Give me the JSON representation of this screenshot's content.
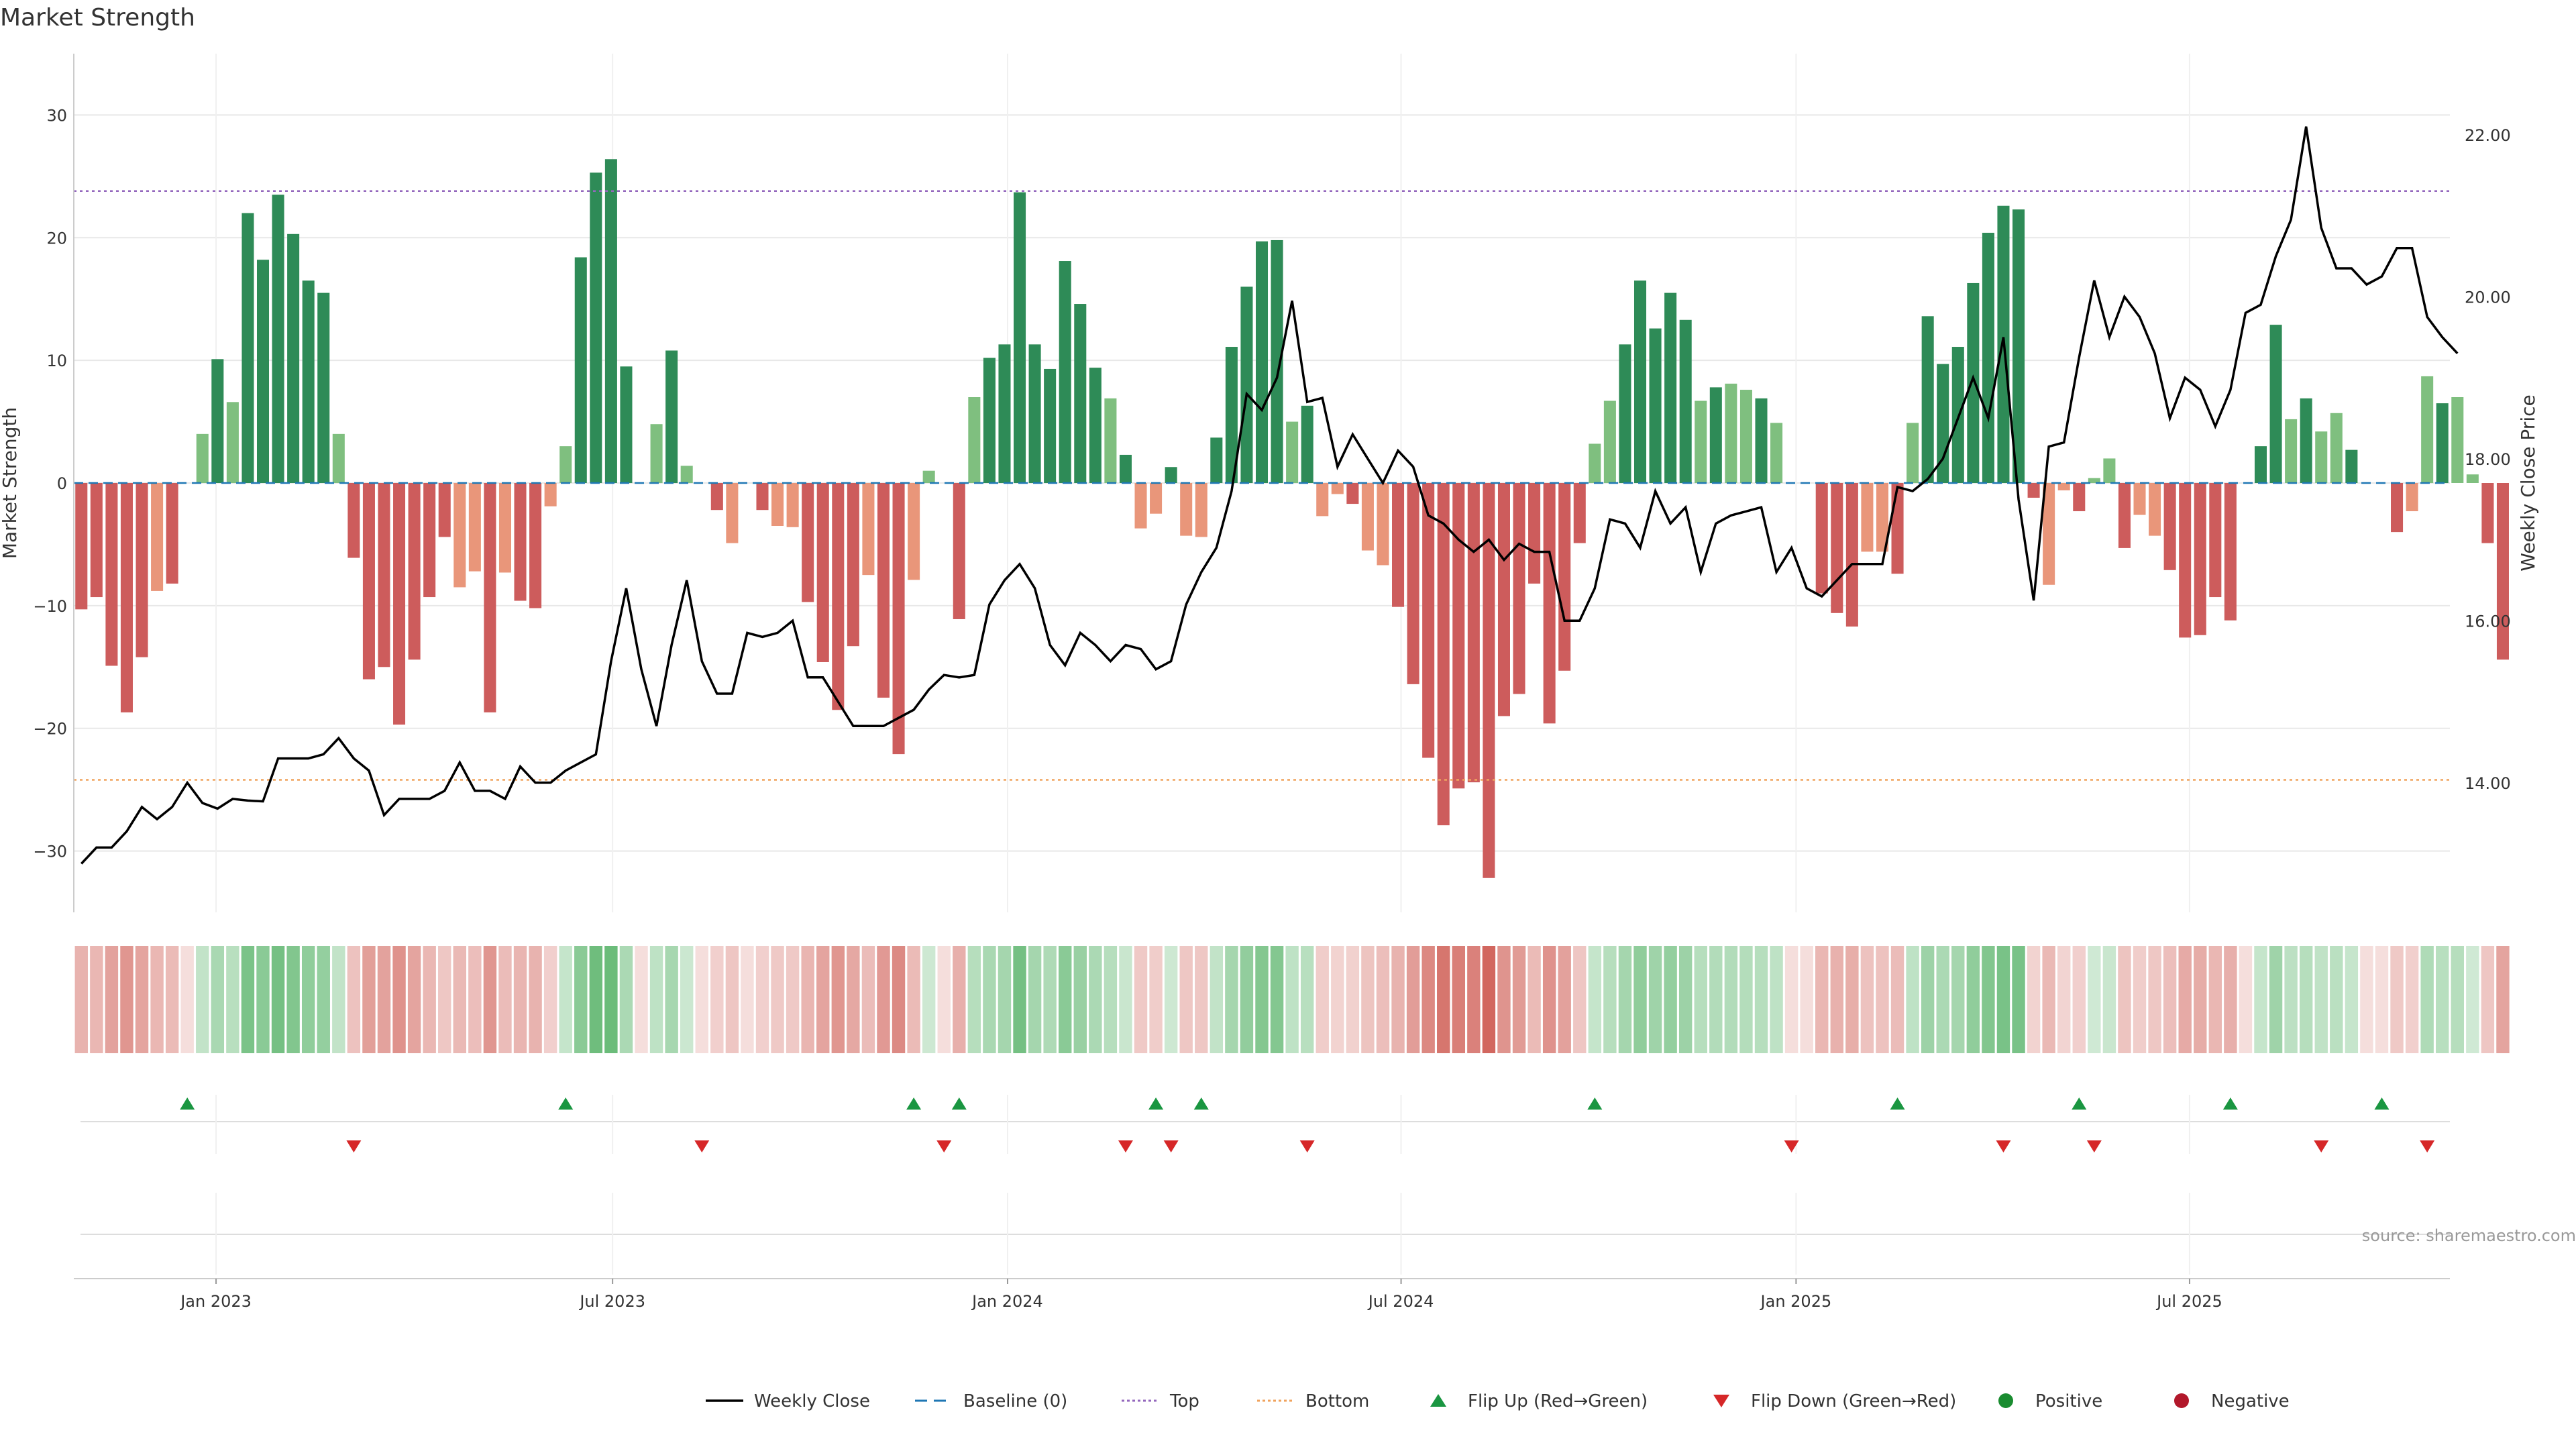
{
  "chart_data": {
    "type": "bar",
    "title": "Market Strength",
    "ylabel": "Market Strength",
    "y2label": "Weekly Close Price",
    "ylim": [
      -35,
      35
    ],
    "y2lim": [
      12.4,
      23.0
    ],
    "yticks": [
      -30,
      -20,
      -10,
      0,
      10,
      20,
      30
    ],
    "ytick_labels": [
      "−30",
      "−20",
      "−10",
      "0",
      "10",
      "20",
      "30"
    ],
    "y2ticks": [
      14,
      16,
      18,
      20,
      22
    ],
    "y2tick_labels": [
      "14.00",
      "16.00",
      "18.00",
      "20.00",
      "22.00"
    ],
    "top_line": 23.8,
    "bottom_line": -24.2,
    "x_tick_labels": [
      {
        "label": "Jan 2023",
        "week": 9.4
      },
      {
        "label": "Jul 2023",
        "week": 35.6
      },
      {
        "label": "Jan 2024",
        "week": 61.7
      },
      {
        "label": "Jul 2024",
        "week": 87.7
      },
      {
        "label": "Jan 2025",
        "week": 113.8
      },
      {
        "label": "Jul 2025",
        "week": 139.8
      }
    ],
    "weeks": 157,
    "strength": [
      -10.3,
      -9.3,
      -14.9,
      -18.7,
      -14.2,
      -8.8,
      -8.2,
      0,
      4.0,
      10.1,
      6.6,
      22.0,
      18.2,
      23.5,
      20.3,
      16.5,
      15.5,
      4.0,
      -6.1,
      -16.0,
      -15.0,
      -19.7,
      -14.4,
      -9.3,
      -4.4,
      -8.5,
      -7.2,
      -18.7,
      -7.3,
      -9.6,
      -10.2,
      -1.9,
      3.0,
      18.4,
      25.3,
      26.4,
      9.5,
      0,
      4.8,
      10.8,
      1.4,
      0,
      -2.2,
      -4.9,
      0,
      -2.2,
      -3.5,
      -3.6,
      -9.7,
      -14.6,
      -18.5,
      -13.3,
      -7.5,
      -17.5,
      -22.1,
      -7.9,
      1.0,
      0,
      -11.1,
      7.0,
      10.2,
      11.3,
      23.7,
      11.3,
      9.3,
      18.1,
      14.6,
      9.4,
      6.9,
      2.3,
      -3.7,
      -2.5,
      1.3,
      -4.3,
      -4.4,
      3.7,
      11.1,
      16.0,
      19.7,
      19.8,
      5.0,
      6.3,
      -2.7,
      -0.9,
      -1.7,
      -5.5,
      -6.7,
      -10.1,
      -16.4,
      -22.4,
      -27.9,
      -24.9,
      -24.4,
      -32.2,
      -19.0,
      -17.2,
      -8.2,
      -19.6,
      -15.3,
      -4.9,
      3.2,
      6.7,
      11.3,
      16.5,
      12.6,
      15.5,
      13.3,
      6.7,
      7.8,
      8.1,
      7.6,
      6.9,
      4.9,
      0,
      0,
      -9.0,
      -10.6,
      -11.7,
      -5.6,
      -5.6,
      -7.4,
      4.9,
      13.6,
      9.7,
      11.1,
      16.3,
      20.4,
      22.6,
      22.3,
      -1.2,
      -8.3,
      -0.6,
      -2.3,
      0.4,
      2.0,
      -5.3,
      -2.6,
      -4.3,
      -7.1,
      -12.6,
      -12.4,
      -9.3,
      -11.2,
      0,
      3.0,
      12.9,
      5.2,
      6.9,
      4.2,
      5.7,
      2.7,
      0,
      0,
      -4.0,
      -2.3,
      8.7,
      6.5,
      7.0,
      0.7,
      -4.9,
      -14.4
    ],
    "close": [
      13.0,
      13.2,
      13.2,
      13.4,
      13.7,
      13.55,
      13.7,
      14.0,
      13.75,
      13.68,
      13.8,
      13.78,
      13.77,
      14.3,
      14.3,
      14.3,
      14.35,
      14.55,
      14.3,
      14.15,
      13.6,
      13.8,
      13.8,
      13.8,
      13.9,
      14.25,
      13.9,
      13.9,
      13.8,
      14.2,
      14.0,
      14.0,
      14.15,
      14.25,
      14.35,
      15.5,
      16.4,
      15.4,
      14.7,
      15.7,
      16.5,
      15.5,
      15.1,
      15.1,
      15.85,
      15.8,
      15.85,
      16.0,
      15.3,
      15.3,
      15.0,
      14.7,
      14.7,
      14.7,
      14.8,
      14.9,
      15.15,
      15.33,
      15.3,
      15.33,
      16.2,
      16.5,
      16.7,
      16.4,
      15.7,
      15.45,
      15.85,
      15.7,
      15.5,
      15.7,
      15.65,
      15.4,
      15.5,
      16.2,
      16.6,
      16.9,
      17.6,
      18.8,
      18.6,
      19.0,
      19.95,
      18.7,
      18.75,
      17.9,
      18.3,
      18.0,
      17.7,
      18.1,
      17.9,
      17.3,
      17.2,
      17.0,
      16.85,
      17.0,
      16.75,
      16.95,
      16.85,
      16.85,
      16.0,
      16.0,
      16.4,
      17.25,
      17.2,
      16.9,
      17.6,
      17.2,
      17.4,
      16.6,
      17.2,
      17.3,
      17.35,
      17.4,
      16.6,
      16.9,
      16.4,
      16.3,
      16.5,
      16.7,
      16.7,
      16.7,
      17.65,
      17.6,
      17.75,
      18.0,
      18.5,
      19.0,
      18.5,
      19.5,
      17.5,
      16.25,
      18.15,
      18.2,
      19.25,
      20.2,
      19.5,
      20.0,
      19.75,
      19.3,
      18.5,
      19.0,
      18.85,
      18.4,
      18.85,
      19.8,
      19.9,
      20.5,
      20.95,
      22.1,
      20.85,
      20.35,
      20.35,
      20.15,
      20.25,
      20.6,
      20.6,
      19.75,
      19.5,
      19.3
    ],
    "flip_up_weeks": [
      7,
      32,
      55,
      58,
      71,
      74,
      100,
      120,
      132,
      142,
      152
    ],
    "flip_down_weeks": [
      18,
      41,
      57,
      69,
      72,
      81,
      113,
      127,
      133,
      148,
      155
    ],
    "source_note": "source: sharemaestro.com",
    "legend": [
      {
        "label": "Weekly Close",
        "kind": "line",
        "color": "#000000"
      },
      {
        "label": "Baseline (0)",
        "kind": "dash",
        "color": "#1f77b4"
      },
      {
        "label": "Top",
        "kind": "dot",
        "color": "#9467bd"
      },
      {
        "label": "Bottom",
        "kind": "dot",
        "color": "#f0a35e"
      },
      {
        "label": "Flip Up (Red→Green)",
        "kind": "up",
        "color": "#1a9641"
      },
      {
        "label": "Flip Down (Green→Red)",
        "kind": "down",
        "color": "#d62728"
      },
      {
        "label": "Positive",
        "kind": "circle",
        "color": "#1a8c30"
      },
      {
        "label": "Negative",
        "kind": "circle",
        "color": "#b2182b"
      }
    ],
    "colors": {
      "pos_strong": "#2e8b57",
      "pos_light": "#7fbf7f",
      "neg_strong": "#cd5c5c",
      "neg_light": "#e9967a",
      "grid": "#e8e8e8",
      "axis": "#cccccc"
    }
  }
}
